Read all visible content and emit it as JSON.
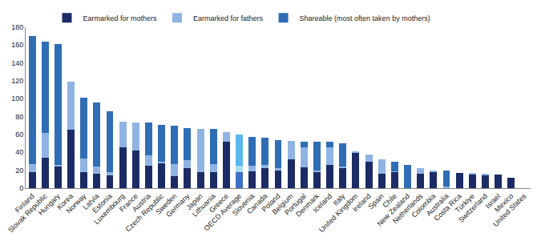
{
  "chart_data": {
    "type": "bar",
    "stacked": true,
    "grid": false,
    "legend": "top",
    "categories": [
      "Finland",
      "Slovak Republic",
      "Hungary",
      "Korea",
      "Norway",
      "Latvia",
      "Estonia",
      "Luxembourg",
      "France",
      "Austria",
      "Czech Republic",
      "Sweden",
      "Germany",
      "Japan",
      "Lithuania",
      "Greece",
      "OECD Average",
      "Slovenia",
      "Canada",
      "Poland",
      "Belgium",
      "Portugal",
      "Denmark",
      "Iceland",
      "Italy",
      "United Kingdom",
      "Ireland",
      "Spain",
      "Chile",
      "New Zealand",
      "Netherlands",
      "Colombia",
      "Australia",
      "Costa Rica",
      "Türkiye",
      "Switzerland",
      "Israel",
      "Mexico",
      "United States"
    ],
    "series": [
      {
        "name": "Earmarked for mothers",
        "colors": [
          "#1c2b66",
          "#1c2b66",
          "#1c2b66",
          "#1c2b66",
          "#1c2b66",
          "#1c2b66",
          "#1c2b66",
          "#1c2b66",
          "#1c2b66",
          "#1c2b66",
          "#1c2b66",
          "#1c2b66",
          "#1c2b66",
          "#1c2b66",
          "#1c2b66",
          "#1c2b66",
          "#3f6fc4",
          "#1c2b66",
          "#1c2b66",
          "#1c2b66",
          "#1c2b66",
          "#1c2b66",
          "#1c2b66",
          "#1c2b66",
          "#1c2b66",
          "#1c2b66",
          "#1c2b66",
          "#1c2b66",
          "#1c2b66",
          "#1c2b66",
          "#1c2b66",
          "#1c2b66",
          "#1c2b66",
          "#1c2b66",
          "#1c2b66",
          "#1c2b66",
          "#1c2b66",
          "#1c2b66",
          "#1c2b66"
        ],
        "values": [
          18,
          34,
          24,
          65,
          18,
          16,
          14,
          46,
          42,
          25,
          28,
          13,
          22,
          18,
          18,
          52,
          18,
          19,
          22,
          20,
          32,
          23,
          18,
          26,
          22,
          39,
          30,
          16,
          18,
          0,
          16,
          18,
          0,
          17,
          16,
          14,
          15,
          12,
          0
        ]
      },
      {
        "name": "Earmarked for fathers",
        "colors": [
          "#8fb4e3",
          "#8fb4e3",
          "#8fb4e3",
          "#8fb4e3",
          "#8fb4e3",
          "#8fb4e3",
          "#8fb4e3",
          "#8fb4e3",
          "#8fb4e3",
          "#8fb4e3",
          "#8fb4e3",
          "#8fb4e3",
          "#8fb4e3",
          "#8fb4e3",
          "#8fb4e3",
          "#8fb4e3",
          "#a9dcf5",
          "#8fb4e3",
          "#8fb4e3",
          "#8fb4e3",
          "#8fb4e3",
          "#8fb4e3",
          "#8fb4e3",
          "#8fb4e3",
          "#8fb4e3",
          "#8fb4e3",
          "#8fb4e3",
          "#8fb4e3",
          "#8fb4e3",
          "#8fb4e3",
          "#8fb4e3",
          "#8fb4e3",
          "#8fb4e3",
          "#8fb4e3",
          "#8fb4e3",
          "#8fb4e3",
          "#8fb4e3",
          "#8fb4e3",
          "#8fb4e3"
        ],
        "values": [
          9,
          28,
          2,
          54,
          15,
          8,
          4,
          28,
          31,
          12,
          2,
          14,
          9,
          48,
          9,
          11,
          7,
          6,
          4,
          2,
          21,
          23,
          2,
          20,
          2,
          2,
          8,
          16,
          1,
          0,
          6,
          2,
          2,
          0,
          1,
          2,
          0,
          0,
          0
        ]
      },
      {
        "name": "Shareable (most often taken by mothers)",
        "colors": [
          "#2f6db5",
          "#2f6db5",
          "#2f6db5",
          "#2f6db5",
          "#2f6db5",
          "#2f6db5",
          "#2f6db5",
          "#2f6db5",
          "#2f6db5",
          "#2f6db5",
          "#2f6db5",
          "#2f6db5",
          "#2f6db5",
          "#2f6db5",
          "#2f6db5",
          "#2f6db5",
          "#5bb8ea",
          "#2f6db5",
          "#2f6db5",
          "#2f6db5",
          "#2f6db5",
          "#2f6db5",
          "#2f6db5",
          "#2f6db5",
          "#2f6db5",
          "#2f6db5",
          "#2f6db5",
          "#2f6db5",
          "#2f6db5",
          "#2f6db5",
          "#2f6db5",
          "#2f6db5",
          "#2f6db5",
          "#2f6db5",
          "#2f6db5",
          "#2f6db5",
          "#2f6db5",
          "#2f6db5",
          "#2f6db5"
        ],
        "values": [
          143,
          102,
          135,
          0,
          68,
          72,
          68,
          0,
          0,
          36,
          41,
          43,
          36,
          0,
          39,
          0,
          35,
          32,
          30,
          32,
          0,
          6,
          32,
          6,
          26,
          0,
          0,
          0,
          11,
          26,
          0,
          0,
          18,
          0,
          0,
          0,
          0,
          0,
          0
        ]
      }
    ],
    "ylim": [
      0,
      180
    ],
    "yticks": [
      0,
      20,
      40,
      60,
      80,
      100,
      120,
      140,
      160,
      180
    ]
  }
}
